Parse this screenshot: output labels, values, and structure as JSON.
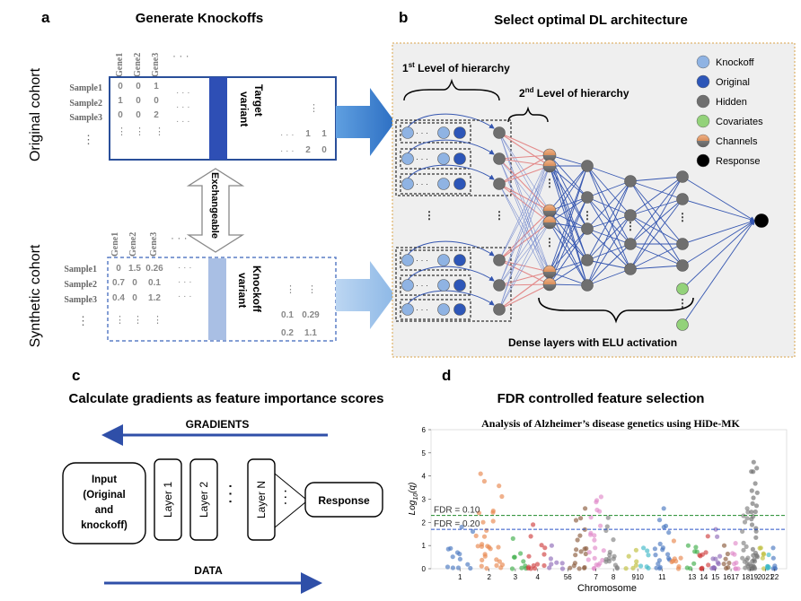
{
  "panel_a": {
    "letter": "a",
    "title": "Generate Knockoffs",
    "cohort_original": "Original cohort",
    "cohort_synthetic": "Synthetic cohort",
    "genes": [
      "Gene1",
      "Gene2",
      "Gene3"
    ],
    "ellipsis_h": "· · ·",
    "ellipsis_v": "⋮",
    "samples": [
      "Sample1",
      "Sample2",
      "Sample3"
    ],
    "original_rows": [
      [
        "0",
        "0",
        "1"
      ],
      [
        "1",
        "0",
        "0"
      ],
      [
        "0",
        "0",
        "2"
      ]
    ],
    "original_corner": [
      [
        "1",
        "1"
      ],
      [
        "2",
        "0"
      ]
    ],
    "synthetic_rows": [
      [
        "0",
        "1.5",
        "0.26"
      ],
      [
        "0.7",
        "0",
        "0.1"
      ],
      [
        "0.4",
        "0",
        "1.2"
      ]
    ],
    "synthetic_corner": [
      [
        "0.1",
        "0.29"
      ],
      [
        "0.2",
        "1.1"
      ]
    ],
    "target_label": [
      "Target",
      "variant"
    ],
    "knockoff_label": [
      "Knockoff",
      "variant"
    ],
    "exchangeable": "Exchangeable",
    "colors": {
      "original_col": "#2e4fb5",
      "knockoff_col": "#a9bfe4",
      "box_border": "#2a4f9a",
      "arrow": "#3a78c8"
    }
  },
  "panel_b": {
    "letter": "b",
    "title": "Select optimal DL architecture",
    "level1": "1st Level of hierarchy",
    "level1_base": "1",
    "level1_sup": "st",
    "level1_rest": " Level of hierarchy",
    "level2_base": "2",
    "level2_sup": "nd",
    "level2_rest": " Level of hierarchy",
    "dense_label": "Dense layers with ELU activation",
    "legend": [
      {
        "label": "Knockoff",
        "color": "#8fb3e3"
      },
      {
        "label": "Original",
        "color": "#2d56b8"
      },
      {
        "label": "Hidden",
        "color": "#6f6f6f"
      },
      {
        "label": "Covariates",
        "color": "#93d27a"
      },
      {
        "label": "Channels",
        "color": "#e9a576"
      },
      {
        "label": "Response",
        "color": "#000000"
      }
    ]
  },
  "panel_c": {
    "letter": "c",
    "title": "Calculate gradients as feature importance scores",
    "gradients": "GRADIENTS",
    "data": "DATA",
    "input_lines": [
      "Input",
      "(Original",
      "and",
      "knockoff)"
    ],
    "layers": [
      "Layer 1",
      "Layer 2",
      "Layer N"
    ],
    "response": "Response",
    "dots": "·  ·  ·"
  },
  "panel_d": {
    "letter": "d",
    "title": "FDR controlled feature selection",
    "chart_data": {
      "type": "scatter",
      "title": "Analysis of Alzheimer’s disease genetics using HiDe-MK",
      "xlabel": "Chromosome",
      "ylabel_prefix": "Log",
      "ylabel_sub": "10",
      "ylabel_suffix": "(q)",
      "ylim": [
        0,
        6
      ],
      "yticks": [
        "0",
        "1",
        "2",
        "3",
        "4",
        "5",
        "6"
      ],
      "xticks": [
        "1",
        "2",
        "3",
        "4",
        "56",
        "7",
        "8",
        "910",
        "11",
        "13",
        "14",
        "15",
        "1617",
        "1819",
        "2021",
        "22"
      ],
      "thresholds": [
        {
          "label": "FDR = 0.10",
          "value": 2.3,
          "color": "#1e8a2a"
        },
        {
          "label": "FDR = 0.20",
          "value": 1.7,
          "color": "#2850c8"
        }
      ],
      "chromosomes": [
        {
          "chr": "1",
          "color": "#4a78c0",
          "max": 1.8
        },
        {
          "chr": "2",
          "color": "#e8874e",
          "max": 4.1
        },
        {
          "chr": "3",
          "color": "#3fae49",
          "max": 1.3
        },
        {
          "chr": "4",
          "color": "#cf4040",
          "max": 1.9
        },
        {
          "chr": "5",
          "color": "#8f6bb8",
          "max": 1.0
        },
        {
          "chr": "6",
          "color": "#8a5a3c",
          "max": 2.6
        },
        {
          "chr": "7",
          "color": "#e08ac9",
          "max": 3.1
        },
        {
          "chr": "8",
          "color": "#7f7f7f",
          "max": 2.2
        },
        {
          "chr": "9",
          "color": "#bfbf3c",
          "max": 0.8
        },
        {
          "chr": "10",
          "color": "#3fb8c8",
          "max": 0.9
        },
        {
          "chr": "11",
          "color": "#4a78c0",
          "max": 2.6
        },
        {
          "chr": "12",
          "color": "#e8874e",
          "max": 1.2
        },
        {
          "chr": "13",
          "color": "#3fae49",
          "max": 1.0
        },
        {
          "chr": "14",
          "color": "#cf4040",
          "max": 1.4
        },
        {
          "chr": "15",
          "color": "#8f6bb8",
          "max": 1.7
        },
        {
          "chr": "16",
          "color": "#8a5a3c",
          "max": 1.0
        },
        {
          "chr": "17",
          "color": "#e08ac9",
          "max": 1.1
        },
        {
          "chr": "18",
          "color": "#7f7f7f",
          "max": 2.6
        },
        {
          "chr": "19",
          "color": "#6f6f6f",
          "max": 4.6
        },
        {
          "chr": "20",
          "color": "#bfbf3c",
          "max": 0.9
        },
        {
          "chr": "21",
          "color": "#3fb8c8",
          "max": 0.6
        },
        {
          "chr": "22",
          "color": "#4a78c0",
          "max": 0.9
        }
      ]
    }
  }
}
